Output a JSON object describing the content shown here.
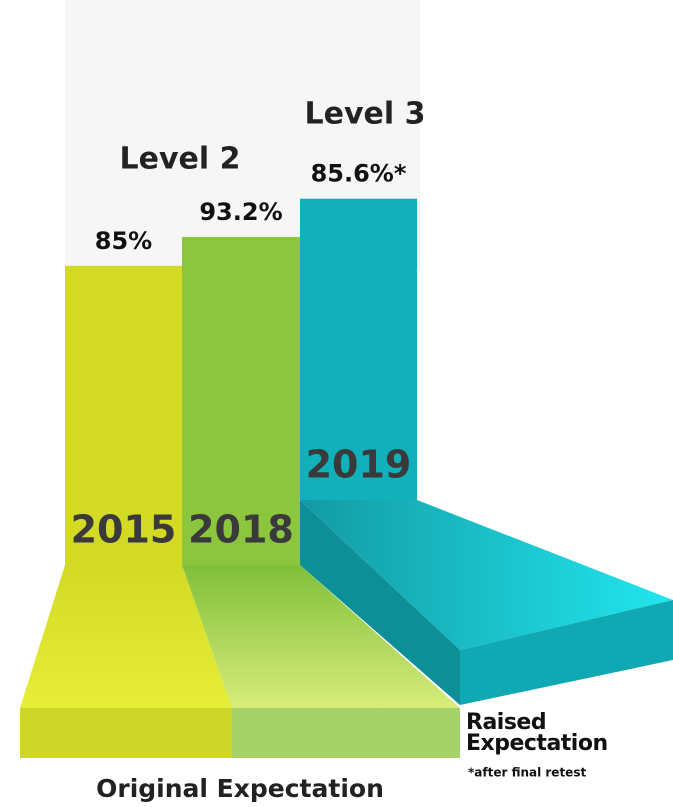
{
  "chart_data": {
    "type": "bar",
    "categories": [
      "2015",
      "2018",
      "2019"
    ],
    "values": [
      85,
      93.2,
      85.6
    ],
    "value_labels": [
      "85%",
      "93.2%",
      "85.6%*"
    ],
    "colors": [
      "#d2da26",
      "#8cc63f",
      "#12b0ba"
    ],
    "levels": [
      {
        "label": "Level 2"
      },
      {
        "label": "Level 3"
      }
    ],
    "original_label": "Original Expectation",
    "raised_label": "Raised Expectation",
    "note": "*after final retest"
  }
}
